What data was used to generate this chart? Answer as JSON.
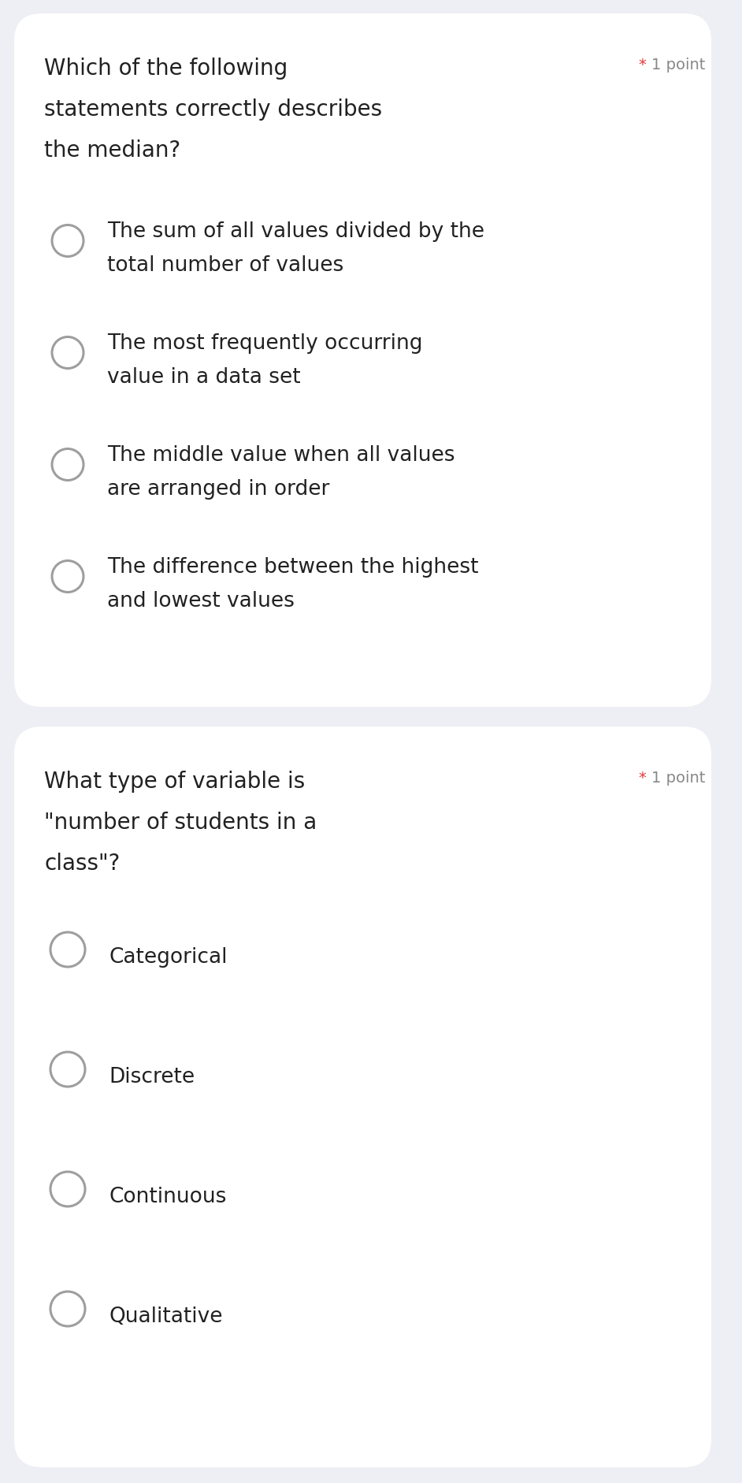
{
  "bg_color": "#eeeef5",
  "card_color": "#ffffff",
  "text_color": "#212121",
  "radio_color": "#9e9e9e",
  "star_color": "#e53935",
  "point_color": "#888888",
  "question_fontsize": 20,
  "option_fontsize": 19,
  "point_fontsize": 14,
  "q1": {
    "question_lines": [
      "Which of the following",
      "statements correctly describes",
      "the median?"
    ],
    "point_label": "1 point",
    "options": [
      [
        "The sum of all values divided by the",
        "total number of values"
      ],
      [
        "The most frequently occurring",
        "value in a data set"
      ],
      [
        "The middle value when all values",
        "are arranged in order"
      ],
      [
        "The difference between the highest",
        "and lowest values"
      ]
    ]
  },
  "q2": {
    "question_lines": [
      "What type of variable is",
      "\"number of students in a",
      "class\"?"
    ],
    "point_label": "1 point",
    "options": [
      [
        "Categorical"
      ],
      [
        "Discrete"
      ],
      [
        "Continuous"
      ],
      [
        "Qualitative"
      ]
    ]
  }
}
